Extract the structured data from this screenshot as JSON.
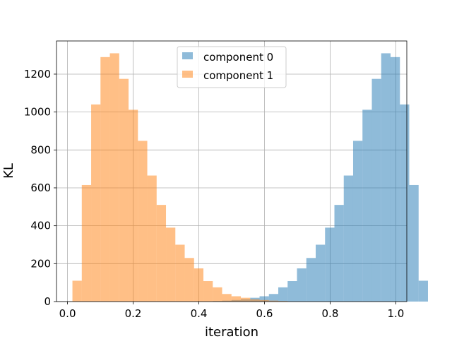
{
  "chart_data": {
    "type": "histogram",
    "title": "",
    "xlabel": "iteration",
    "ylabel": "KL",
    "xlim": [
      -0.0335,
      1.0335
    ],
    "ylim": [
      0,
      1375
    ],
    "xticks": [
      0.0,
      0.2,
      0.4,
      0.6,
      0.8,
      1.0
    ],
    "xtick_labels": [
      "0.0",
      "0.2",
      "0.4",
      "0.6",
      "0.8",
      "1.0"
    ],
    "yticks": [
      0,
      200,
      400,
      600,
      800,
      1000,
      1200
    ],
    "ytick_labels": [
      "0",
      "200",
      "400",
      "600",
      "800",
      "1000",
      "1200"
    ],
    "grid": true,
    "legend_position": "top-center",
    "bin_start": 0.015,
    "bin_width": 0.0285,
    "series": [
      {
        "name": "component 0",
        "color": "#1f77b4",
        "alpha": 0.5,
        "counts": [
          0,
          0,
          0,
          0,
          0,
          0,
          0,
          0,
          0,
          0,
          0,
          0,
          0,
          0,
          0,
          3,
          5,
          8,
          12,
          20,
          28,
          40,
          75,
          108,
          175,
          230,
          300,
          390,
          510,
          665,
          848,
          1012,
          1175,
          1310,
          1290,
          1040,
          615,
          110
        ]
      },
      {
        "name": "component 1",
        "color": "#ff7f0e",
        "alpha": 0.5,
        "counts": [
          110,
          615,
          1040,
          1290,
          1310,
          1175,
          1012,
          848,
          665,
          510,
          390,
          300,
          230,
          175,
          108,
          75,
          40,
          28,
          20,
          12,
          8,
          5,
          3,
          0,
          0,
          0,
          0,
          0,
          0,
          0,
          0,
          0,
          0,
          0,
          0,
          0,
          0,
          0
        ]
      }
    ]
  }
}
